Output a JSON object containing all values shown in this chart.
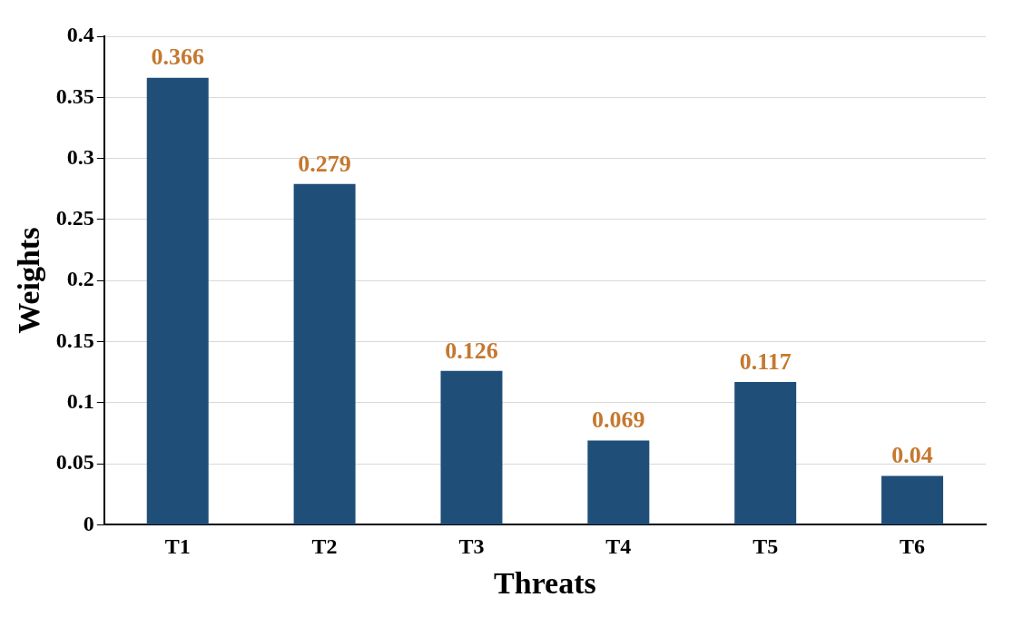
{
  "chart_data": {
    "type": "bar",
    "xlabel": "Threats",
    "ylabel": "Weights",
    "categories": [
      "T1",
      "T2",
      "T3",
      "T4",
      "T5",
      "T6"
    ],
    "values": [
      0.366,
      0.279,
      0.126,
      0.069,
      0.117,
      0.04
    ],
    "color": "#1f4e79",
    "ylim": [
      0,
      0.4
    ],
    "yticks": [
      0,
      0.05,
      0.1,
      0.15,
      0.2,
      0.25,
      0.3,
      0.35,
      0.4
    ],
    "grid": "y",
    "data_labels": true,
    "legend": false
  }
}
